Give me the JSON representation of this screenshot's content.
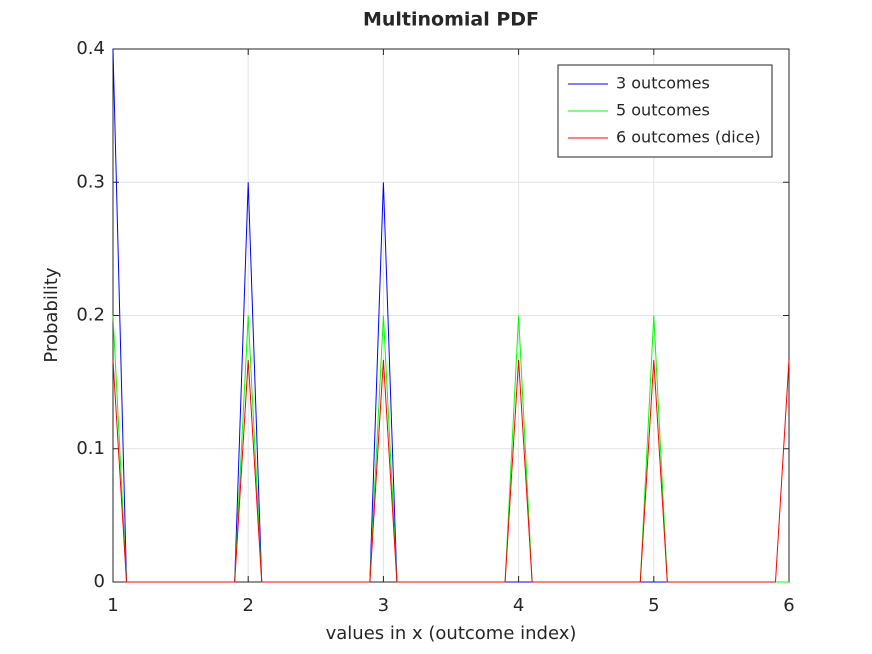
{
  "chart_data": {
    "type": "line",
    "title": "Multinomial PDF",
    "x_label": "values in x (outcome index)",
    "y_label": "Probability",
    "x": [
      1,
      1.1,
      1.2,
      1.3,
      1.4,
      1.5,
      1.6,
      1.7,
      1.8,
      1.9,
      2,
      2.1,
      2.2,
      2.3,
      2.4,
      2.5,
      2.6,
      2.7,
      2.8,
      2.9,
      3,
      3.1,
      3.2,
      3.3,
      3.4,
      3.5,
      3.6,
      3.7,
      3.8,
      3.9,
      4,
      4.1,
      4.2,
      4.3,
      4.4,
      4.5,
      4.6,
      4.7,
      4.8,
      4.9,
      5,
      5.1,
      5.2,
      5.3,
      5.4,
      5.5,
      5.6,
      5.7,
      5.8,
      5.9,
      6
    ],
    "series": [
      {
        "name": "3 outcomes",
        "color": "#0000ff",
        "values": [
          0.4,
          0,
          0,
          0,
          0,
          0,
          0,
          0,
          0,
          0,
          0.3,
          0,
          0,
          0,
          0,
          0,
          0,
          0,
          0,
          0,
          0.3,
          0,
          0,
          0,
          0,
          0,
          0,
          0,
          0,
          0,
          0,
          0,
          0,
          0,
          0,
          0,
          0,
          0,
          0,
          0,
          0,
          0,
          0,
          0,
          0,
          0,
          0,
          0,
          0,
          0,
          0
        ]
      },
      {
        "name": "5 outcomes",
        "color": "#00ff00",
        "values": [
          0.2,
          0,
          0,
          0,
          0,
          0,
          0,
          0,
          0,
          0,
          0.2,
          0,
          0,
          0,
          0,
          0,
          0,
          0,
          0,
          0,
          0.2,
          0,
          0,
          0,
          0,
          0,
          0,
          0,
          0,
          0,
          0.2,
          0,
          0,
          0,
          0,
          0,
          0,
          0,
          0,
          0,
          0.2,
          0,
          0,
          0,
          0,
          0,
          0,
          0,
          0,
          0,
          0
        ]
      },
      {
        "name": "6 outcomes (dice)",
        "color": "#ff0000",
        "values": [
          0.1667,
          0,
          0,
          0,
          0,
          0,
          0,
          0,
          0,
          0,
          0.1667,
          0,
          0,
          0,
          0,
          0,
          0,
          0,
          0,
          0,
          0.1667,
          0,
          0,
          0,
          0,
          0,
          0,
          0,
          0,
          0,
          0.1667,
          0,
          0,
          0,
          0,
          0,
          0,
          0,
          0,
          0,
          0.1667,
          0,
          0,
          0,
          0,
          0,
          0,
          0,
          0,
          0,
          0.1667
        ]
      }
    ],
    "xlim": [
      1,
      6
    ],
    "ylim": [
      0,
      0.4
    ],
    "xticks": [
      1,
      2,
      3,
      4,
      5,
      6
    ],
    "yticks": [
      0,
      0.1,
      0.2,
      0.3,
      0.4
    ],
    "grid": true,
    "legend_position": "northeast"
  }
}
